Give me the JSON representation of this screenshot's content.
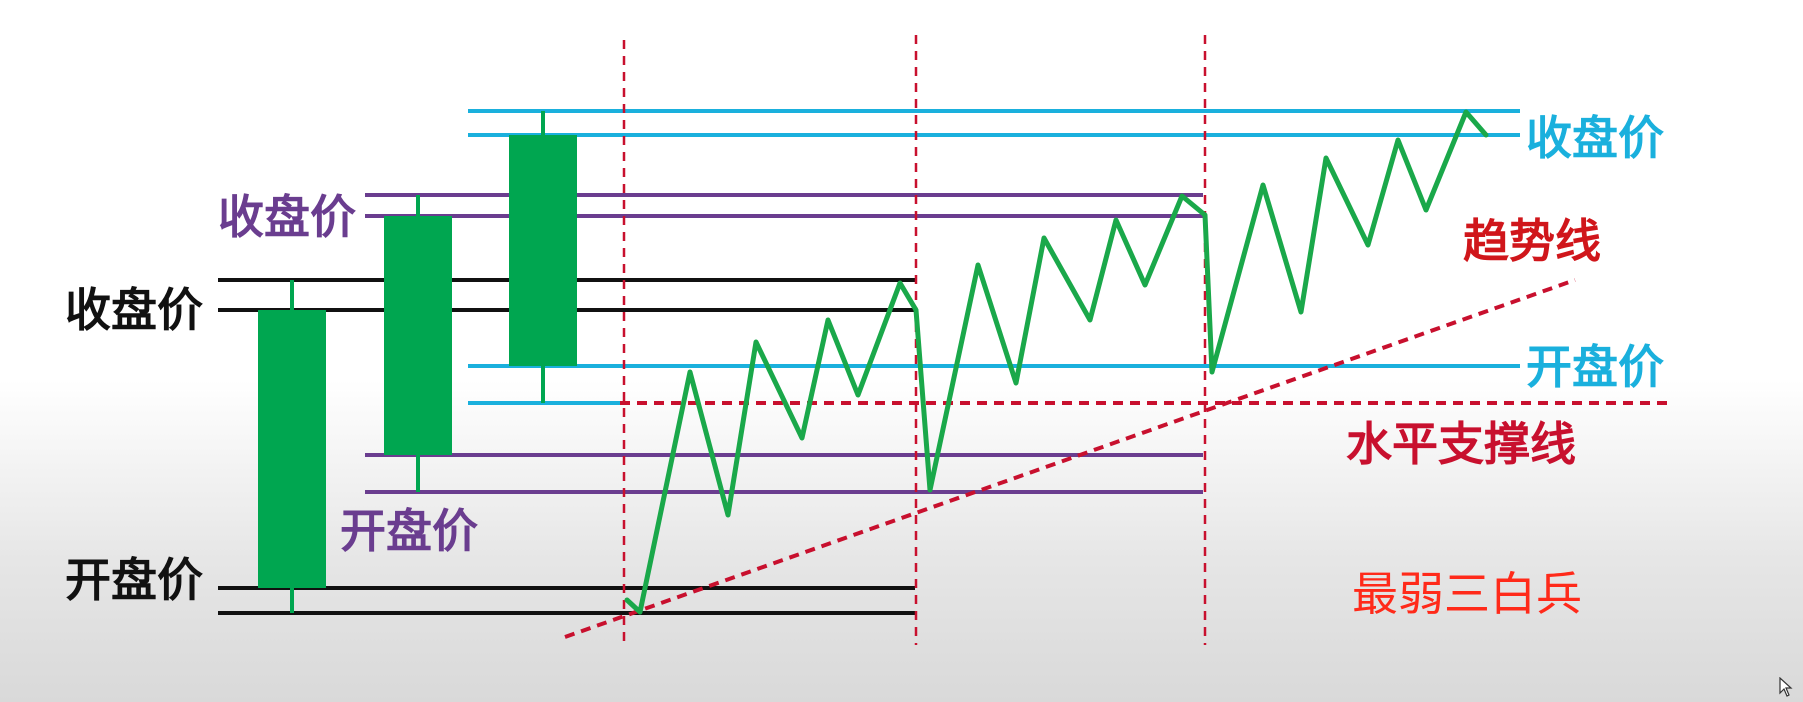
{
  "labels": {
    "c1_close": "收盘价",
    "c1_open": "开盘价",
    "c2_close": "收盘价",
    "c2_open": "开盘价",
    "c3_close": "收盘价",
    "c3_open": "开盘价",
    "trend_line": "趋势线",
    "support_line": "水平支撑线",
    "pattern_name": "最弱三白兵"
  },
  "colors": {
    "candle_green": "#00a650",
    "wave_green": "#1aa84a",
    "black_lines": "#111111",
    "purple_lines": "#6a3d8f",
    "blue_lines": "#1ab0dd",
    "red_dashed": "#c8102e",
    "red_label": "#d0161b",
    "pattern_label": "#ff2a1a"
  },
  "icons": {
    "cursor": "mouse-pointer-icon"
  }
}
